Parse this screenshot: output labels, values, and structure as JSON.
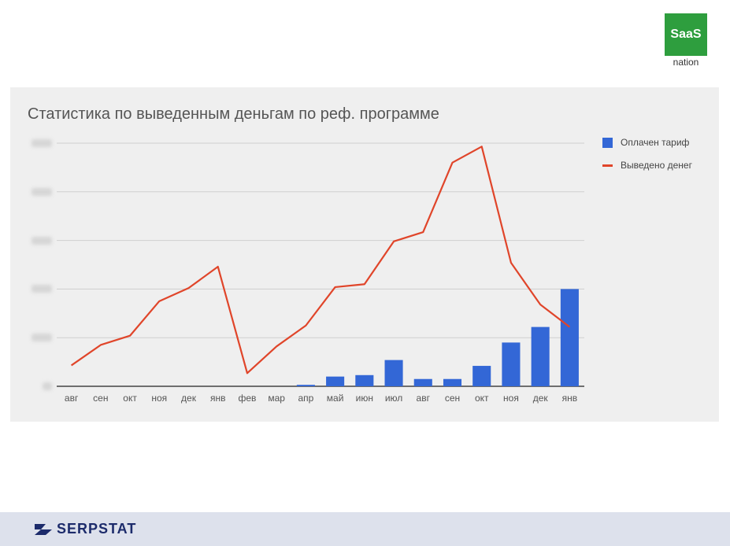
{
  "brand": {
    "saas_main": "SaaS",
    "saas_sub": "nation",
    "serpstat": "SERPSTAT"
  },
  "colors": {
    "bar": "#3367d6",
    "line": "#e0452a",
    "saas_green": "#2e9e3e"
  },
  "chart_data": {
    "type": "bar",
    "title": "Статистика по выведенным деньгам по реф. программе",
    "categories": [
      "авг",
      "сен",
      "окт",
      "ноя",
      "дек",
      "янв",
      "фев",
      "мар",
      "апр",
      "май",
      "июн",
      "июл",
      "авг",
      "сен",
      "окт",
      "ноя",
      "дек",
      "янв"
    ],
    "series": [
      {
        "name": "Оплачен тариф",
        "type": "bar",
        "values": [
          0,
          0,
          0,
          0,
          0,
          0,
          0,
          0,
          0.3,
          2.0,
          2.3,
          5.4,
          1.5,
          1.5,
          4.2,
          9.0,
          12.2,
          20.0
        ]
      },
      {
        "name": "Выведено денег",
        "type": "line",
        "values": [
          4.3,
          8.5,
          10.4,
          17.5,
          20.2,
          24.6,
          2.7,
          8.2,
          12.5,
          20.4,
          21.0,
          29.8,
          31.7,
          46.0,
          49.3,
          25.4,
          16.8,
          12.2
        ]
      }
    ],
    "ylim": [
      0,
      50
    ],
    "grid": true,
    "legend": "right",
    "ytick_count": 6
  }
}
